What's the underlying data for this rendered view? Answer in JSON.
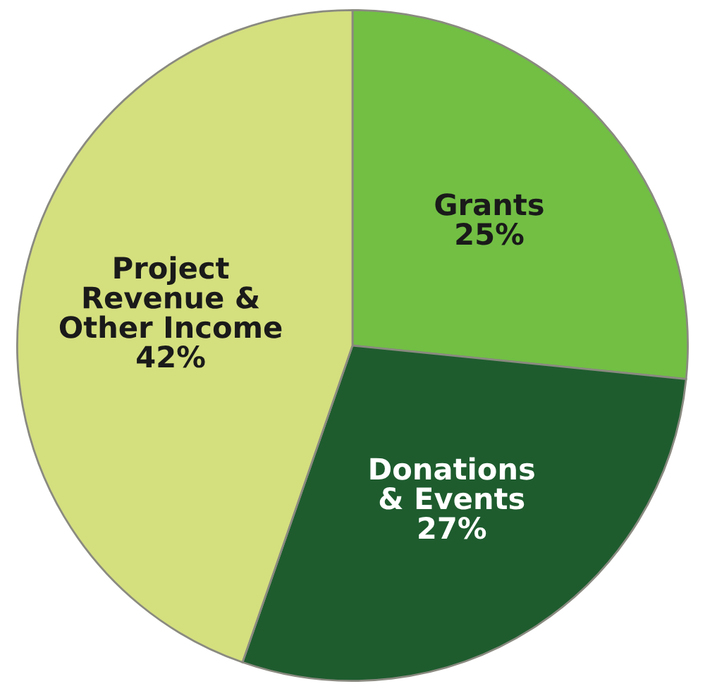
{
  "chart_data": {
    "type": "pie",
    "categories": [
      "Grants",
      "Donations\n& Events",
      "Project\nRevenue &\nOther Income"
    ],
    "values": [
      25,
      27,
      42
    ],
    "value_labels": [
      "25%",
      "27%",
      "42%"
    ],
    "colors": [
      "#72bf44",
      "#1e5c2e",
      "#d4df7e"
    ],
    "legend": false
  }
}
